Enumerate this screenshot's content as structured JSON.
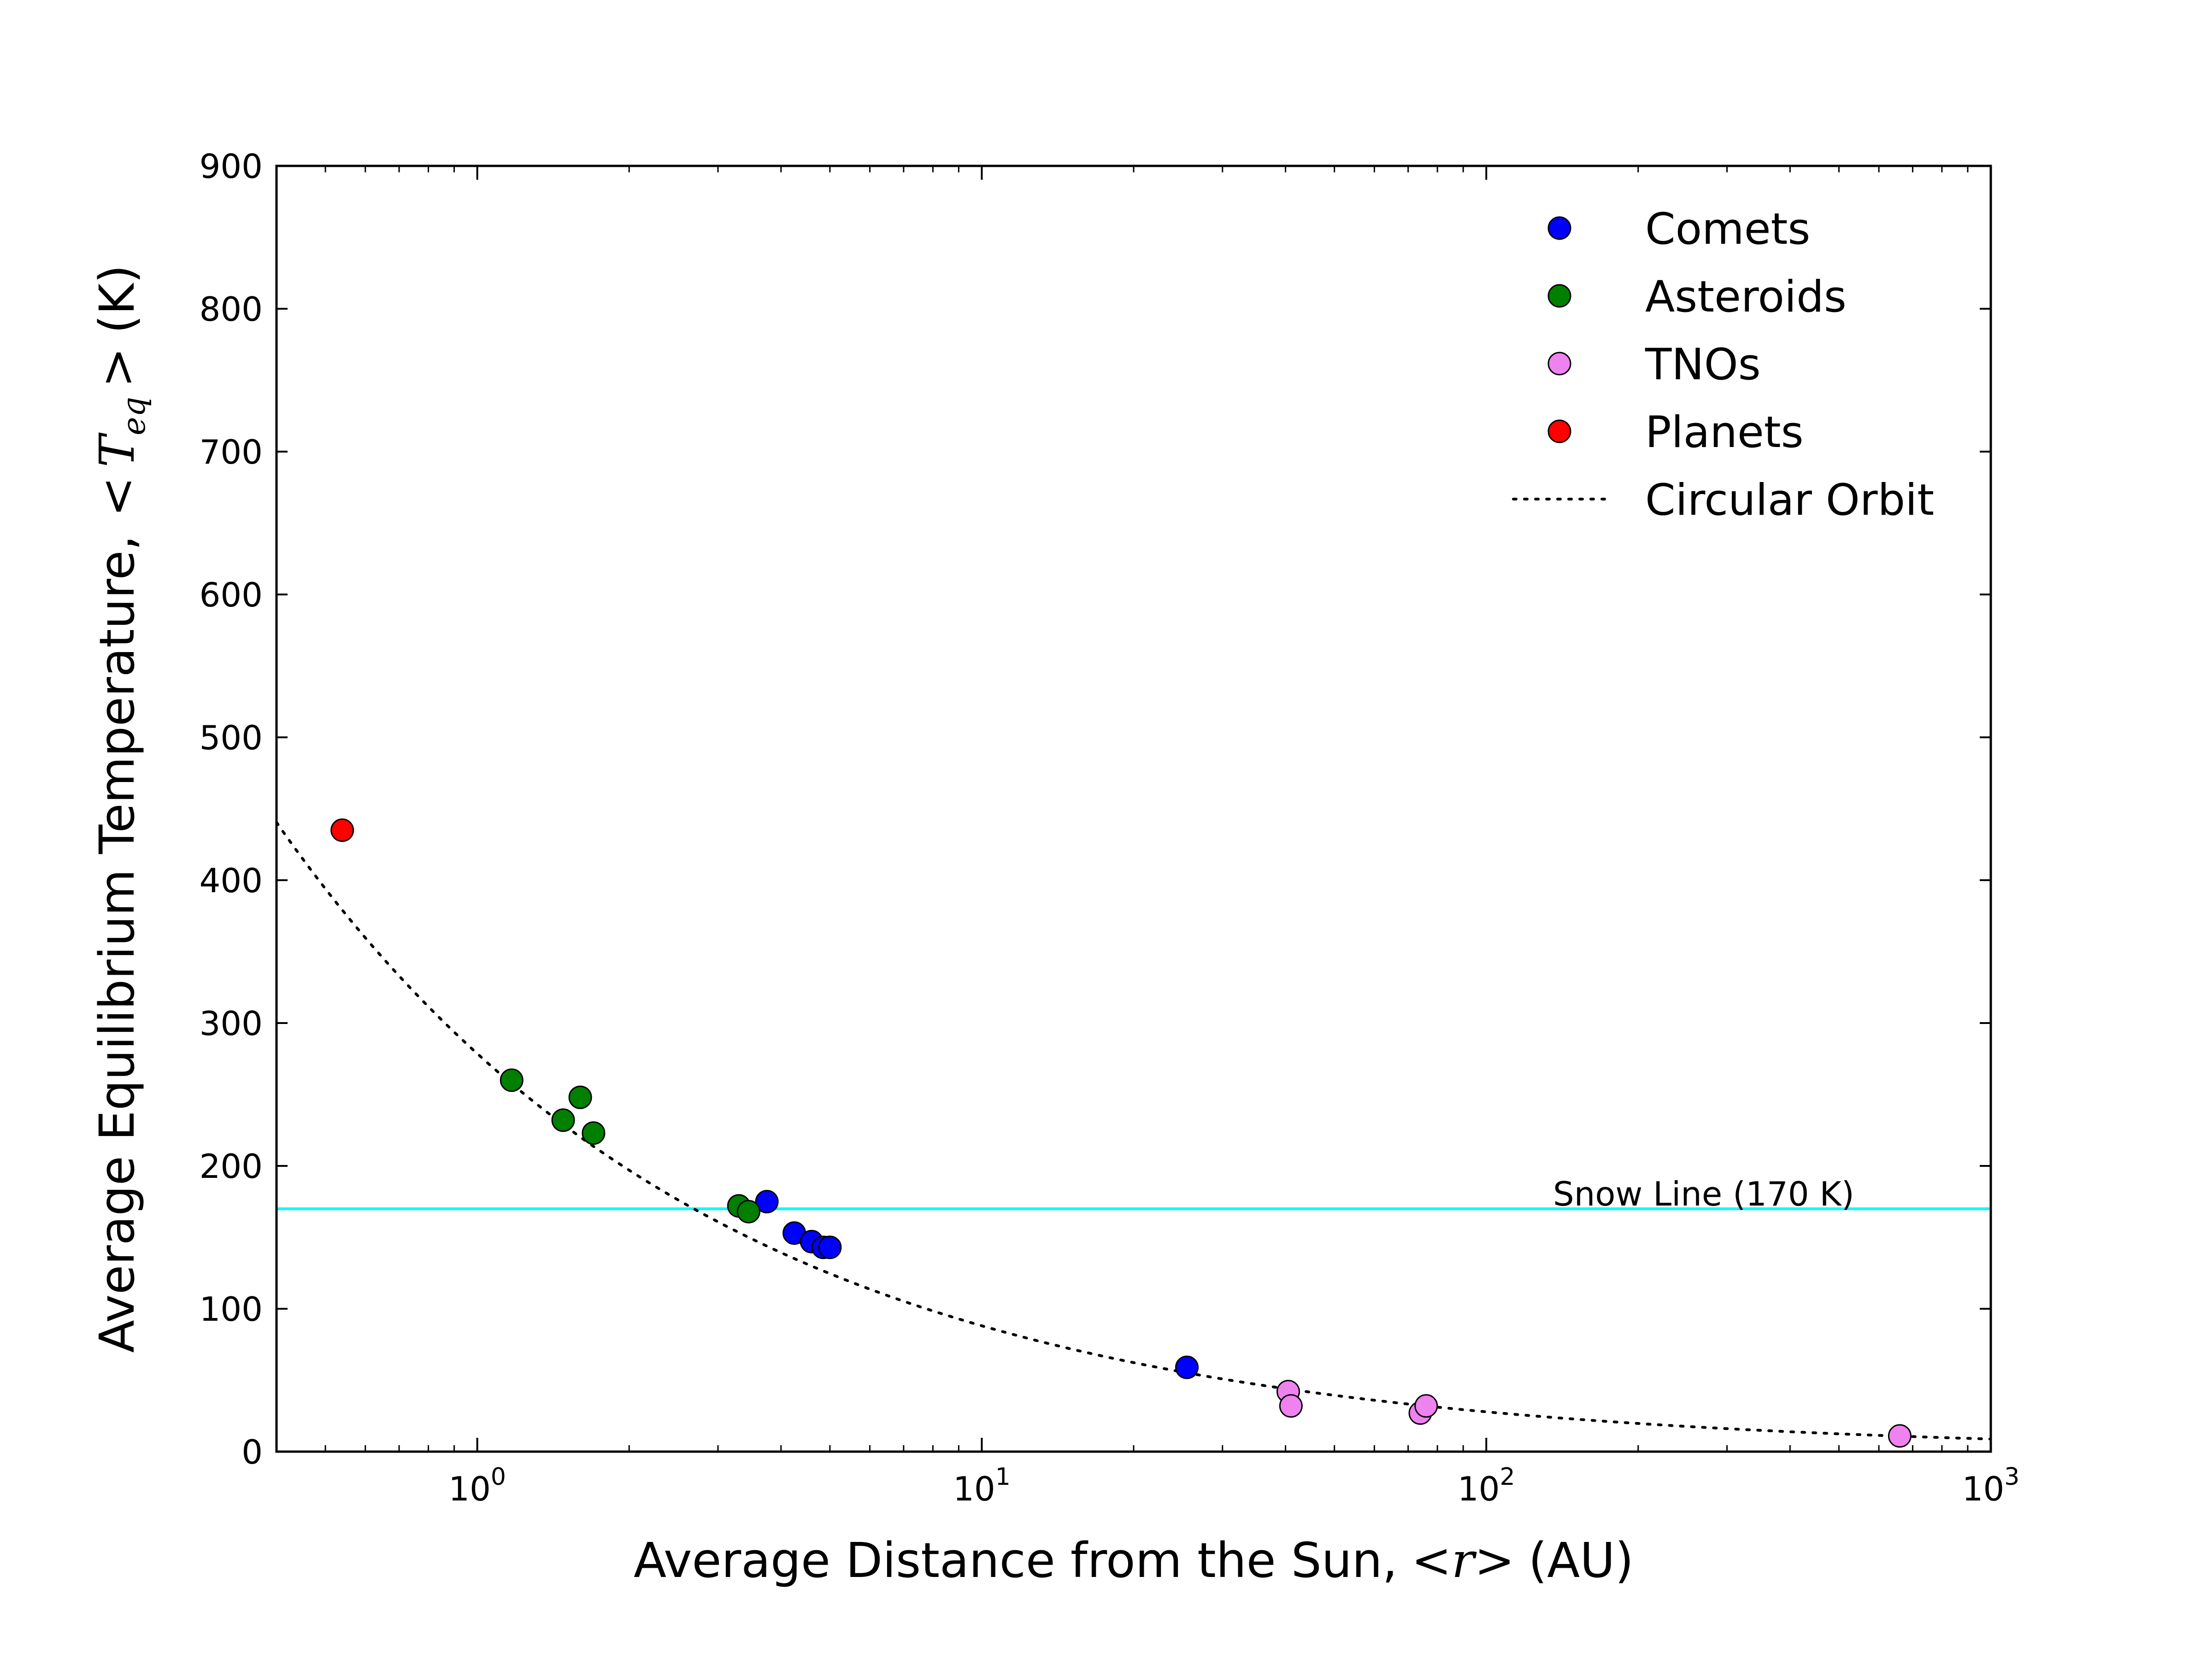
{
  "chart_data": {
    "type": "scatter",
    "x_scale": "log",
    "xlim": [
      0.4,
      1000
    ],
    "ylim": [
      0,
      900
    ],
    "x_ticks": [
      {
        "value": 1,
        "base": "10",
        "exp": "0"
      },
      {
        "value": 10,
        "base": "10",
        "exp": "1"
      },
      {
        "value": 100,
        "base": "10",
        "exp": "2"
      },
      {
        "value": 1000,
        "base": "10",
        "exp": "3"
      }
    ],
    "y_ticks": [
      "0",
      "100",
      "200",
      "300",
      "400",
      "500",
      "600",
      "700",
      "800",
      "900"
    ],
    "xlabel": {
      "prefix": "Average Distance from the Sun,",
      "math": "<r>",
      "suffix": "(AU)"
    },
    "ylabel": {
      "prefix": "Average Equilibrium Temperature,",
      "math_T": "T",
      "math_sub": "eq",
      "suffix": "(K)"
    },
    "grid": false,
    "legend_position": "top-right",
    "series": [
      {
        "name": "Comets",
        "color": "#0000ff",
        "points": [
          [
            3.75,
            175
          ],
          [
            4.25,
            153
          ],
          [
            4.6,
            147
          ],
          [
            4.85,
            143
          ],
          [
            5.0,
            143
          ],
          [
            25.5,
            59
          ]
        ]
      },
      {
        "name": "Asteroids",
        "color": "#007f00",
        "points": [
          [
            1.17,
            260
          ],
          [
            1.48,
            232
          ],
          [
            1.6,
            248
          ],
          [
            1.7,
            223
          ],
          [
            3.3,
            172
          ],
          [
            3.45,
            168
          ]
        ]
      },
      {
        "name": "TNOs",
        "color": "#ee82ee",
        "points": [
          [
            40.5,
            42
          ],
          [
            41.0,
            32
          ],
          [
            74.0,
            27
          ],
          [
            76.0,
            32
          ],
          [
            660,
            11
          ]
        ]
      },
      {
        "name": "Planets",
        "color": "#ff0000",
        "points": [
          [
            0.54,
            435
          ]
        ]
      }
    ],
    "reference_line": {
      "name": "Circular Orbit",
      "style": "dotted",
      "color": "#000000"
    },
    "snow_line": {
      "value": 170,
      "color": "#00ffff",
      "label": "Snow Line (170 K)"
    }
  }
}
